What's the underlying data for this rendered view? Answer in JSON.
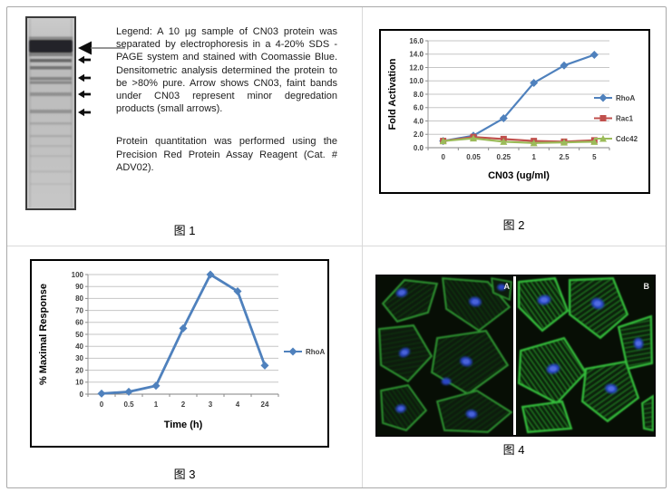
{
  "page": {
    "background": "#ffffff",
    "outer_border_color": "#a9a9a9",
    "divider_color": "#d9d9d9"
  },
  "figure1": {
    "caption": "图 1",
    "legend_paragraph": "Legend: A 10 µg sample of CN03  protein was separated by electrophoresis in a 4-20% SDS -PAGE system and stained with Coomassie Blue.  Densitometric analysis determined the protein to be >80% pure.  Arrow shows CN03, faint bands under CN03 represent minor degredation products (small arrows).",
    "quantitation_paragraph": "Protein quantitation was performed using the Precision Red Protein Assay Reagent (Cat. # ADV02)."
  },
  "figure2": {
    "caption": "图 2"
  },
  "figure3": {
    "caption": "图 3"
  },
  "figure4": {
    "caption": "图 4",
    "panels": [
      {
        "label": "A"
      },
      {
        "label": "B"
      }
    ]
  },
  "chart_data": [
    {
      "type": "line",
      "figure": "图 2",
      "title": "",
      "xlabel": "CN03 (ug/ml)",
      "ylabel": "Fold Activation",
      "categories": [
        "0",
        "0.05",
        "0.25",
        "1",
        "2.5",
        "5"
      ],
      "ylim": [
        0,
        16
      ],
      "ystep": 2,
      "ydecimals": 1,
      "grid": true,
      "legend_position": "right",
      "series": [
        {
          "name": "RhoA",
          "color": "#4F81BD",
          "marker": "diamond",
          "values": [
            1.0,
            1.8,
            4.4,
            9.7,
            12.3,
            13.9
          ]
        },
        {
          "name": "Rac1",
          "color": "#C0504D",
          "marker": "square",
          "values": [
            1.0,
            1.6,
            1.3,
            1.0,
            0.9,
            1.1
          ]
        },
        {
          "name": "Cdc42",
          "color": "#9BBB59",
          "marker": "triangle",
          "values": [
            1.0,
            1.4,
            0.9,
            0.7,
            0.8,
            0.9
          ]
        }
      ]
    },
    {
      "type": "line",
      "figure": "图 3",
      "title": "",
      "xlabel": "Time (h)",
      "ylabel": "% Maximal Response",
      "categories": [
        "0",
        "0.5",
        "1",
        "2",
        "3",
        "4",
        "24"
      ],
      "ylim": [
        0,
        100
      ],
      "ystep": 10,
      "ydecimals": 0,
      "grid": true,
      "legend_position": "right",
      "series": [
        {
          "name": "RhoA",
          "color": "#4F81BD",
          "marker": "diamond",
          "values": [
            0.5,
            2,
            7,
            55,
            100,
            86,
            24
          ]
        }
      ]
    }
  ]
}
